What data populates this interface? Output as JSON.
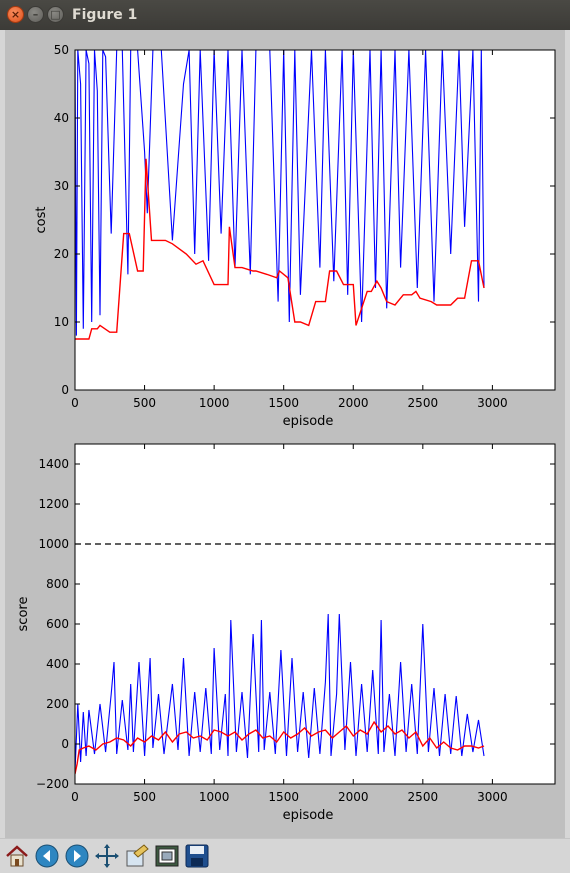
{
  "window": {
    "title": "Figure 1"
  },
  "colors": {
    "raw": "#0000ff",
    "smooth": "#ff0000",
    "target": "#000000"
  },
  "chart_data": [
    {
      "type": "line",
      "xlabel": "episode",
      "ylabel": "cost",
      "xlim": [
        0,
        3450
      ],
      "ylim": [
        0,
        50
      ],
      "xticks": [
        "0",
        "500",
        "1000",
        "1500",
        "2000",
        "2500",
        "3000"
      ],
      "yticks": [
        "0",
        "10",
        "20",
        "30",
        "40",
        "50"
      ],
      "grid": false,
      "series": [
        {
          "role": "raw",
          "color": "#0000ff",
          "x": [
            0,
            10,
            20,
            40,
            60,
            80,
            100,
            120,
            140,
            160,
            180,
            200,
            220,
            260,
            300,
            340,
            380,
            400,
            450,
            500,
            520,
            560,
            620,
            700,
            780,
            820,
            860,
            900,
            960,
            1000,
            1050,
            1100,
            1150,
            1200,
            1260,
            1300,
            1400,
            1460,
            1500,
            1540,
            1580,
            1620,
            1700,
            1760,
            1800,
            1860,
            1920,
            1960,
            2000,
            2060,
            2120,
            2160,
            2200,
            2240,
            2300,
            2340,
            2400,
            2460,
            2520,
            2580,
            2640,
            2700,
            2760,
            2800,
            2860,
            2900,
            2920,
            2940
          ],
          "y": [
            50,
            8,
            50,
            45,
            9,
            50,
            48,
            10,
            50,
            44,
            11,
            50,
            49,
            23,
            50,
            50,
            17,
            50,
            50,
            35,
            26,
            50,
            50,
            22,
            45,
            50,
            20,
            50,
            19,
            50,
            23,
            50,
            18,
            50,
            17,
            50,
            50,
            13,
            50,
            10,
            50,
            14,
            50,
            18,
            50,
            16,
            50,
            14,
            50,
            10,
            50,
            15,
            50,
            12,
            50,
            18,
            50,
            15,
            50,
            13,
            50,
            20,
            50,
            24,
            50,
            13,
            50,
            15
          ]
        },
        {
          "role": "smooth",
          "color": "#ff0000",
          "x": [
            0,
            100,
            120,
            160,
            180,
            250,
            270,
            300,
            350,
            390,
            450,
            490,
            510,
            550,
            650,
            700,
            800,
            870,
            920,
            1000,
            1100,
            1110,
            1150,
            1200,
            1280,
            1300,
            1380,
            1450,
            1470,
            1530,
            1580,
            1620,
            1680,
            1730,
            1800,
            1830,
            1880,
            1930,
            2000,
            2020,
            2100,
            2130,
            2170,
            2200,
            2240,
            2300,
            2360,
            2420,
            2450,
            2480,
            2560,
            2600,
            2700,
            2750,
            2800,
            2850,
            2900,
            2940
          ],
          "y": [
            7.5,
            7.5,
            9,
            9,
            9.5,
            8.5,
            8.5,
            8.5,
            23,
            23,
            17.5,
            17.5,
            34,
            22,
            22,
            21.5,
            20,
            18.5,
            19,
            15.5,
            15.5,
            24,
            18,
            18,
            17.5,
            17.5,
            17,
            16.5,
            17.5,
            16.5,
            10,
            10,
            9.5,
            13,
            13,
            17.5,
            17.5,
            15.5,
            15.5,
            9.5,
            14.5,
            14.5,
            16,
            15,
            13,
            12.5,
            14,
            14,
            14.5,
            13.5,
            13,
            12.5,
            12.5,
            13.5,
            13.5,
            19,
            19,
            15
          ]
        }
      ]
    },
    {
      "type": "line",
      "xlabel": "episode",
      "ylabel": "score",
      "xlim": [
        0,
        3450
      ],
      "ylim": [
        -200,
        1500
      ],
      "xticks": [
        "0",
        "500",
        "1000",
        "1500",
        "2000",
        "2500",
        "3000"
      ],
      "yticks": [
        "−200",
        "0",
        "200",
        "400",
        "600",
        "800",
        "1000",
        "1200",
        "1400"
      ],
      "grid": false,
      "target_line": {
        "y": 1000,
        "style": "dashed",
        "color": "#000000"
      },
      "series": [
        {
          "role": "raw",
          "color": "#0000ff",
          "x": [
            0,
            20,
            40,
            60,
            80,
            100,
            140,
            180,
            220,
            260,
            280,
            300,
            340,
            380,
            400,
            420,
            460,
            500,
            540,
            560,
            600,
            640,
            700,
            740,
            780,
            820,
            860,
            900,
            940,
            980,
            1000,
            1040,
            1080,
            1100,
            1120,
            1160,
            1200,
            1240,
            1280,
            1320,
            1340,
            1360,
            1400,
            1440,
            1480,
            1520,
            1560,
            1600,
            1640,
            1680,
            1720,
            1760,
            1800,
            1820,
            1840,
            1880,
            1900,
            1940,
            1980,
            2020,
            2060,
            2100,
            2140,
            2180,
            2200,
            2220,
            2260,
            2300,
            2340,
            2380,
            2420,
            2460,
            2500,
            2540,
            2580,
            2620,
            2660,
            2700,
            2740,
            2780,
            2820,
            2860,
            2900,
            2940
          ],
          "y": [
            -140,
            200,
            -90,
            160,
            -60,
            170,
            -50,
            200,
            -40,
            250,
            410,
            -50,
            220,
            -30,
            300,
            -40,
            410,
            -60,
            430,
            -20,
            250,
            -50,
            300,
            -30,
            430,
            -60,
            260,
            -40,
            280,
            -50,
            480,
            -30,
            250,
            -60,
            620,
            -40,
            260,
            -70,
            550,
            -40,
            620,
            -30,
            260,
            -50,
            470,
            -60,
            430,
            -40,
            260,
            -70,
            280,
            -50,
            310,
            650,
            -60,
            250,
            650,
            -30,
            410,
            -60,
            300,
            -40,
            370,
            -50,
            620,
            -40,
            250,
            -60,
            410,
            -40,
            300,
            -50,
            600,
            -40,
            280,
            -60,
            250,
            -50,
            240,
            -60,
            150,
            -40,
            120,
            -60
          ]
        },
        {
          "role": "smooth",
          "color": "#ff0000",
          "x": [
            0,
            15,
            30,
            60,
            100,
            150,
            200,
            250,
            300,
            350,
            400,
            450,
            500,
            550,
            600,
            650,
            700,
            750,
            800,
            850,
            900,
            950,
            1000,
            1050,
            1100,
            1150,
            1200,
            1250,
            1300,
            1350,
            1400,
            1450,
            1500,
            1550,
            1600,
            1650,
            1700,
            1750,
            1800,
            1850,
            1900,
            1950,
            2000,
            2050,
            2100,
            2150,
            2200,
            2250,
            2300,
            2350,
            2400,
            2450,
            2500,
            2550,
            2600,
            2650,
            2700,
            2750,
            2800,
            2850,
            2900,
            2940
          ],
          "y": [
            -150,
            -100,
            -30,
            -20,
            -10,
            -30,
            0,
            10,
            30,
            20,
            -10,
            30,
            10,
            40,
            20,
            60,
            10,
            50,
            60,
            30,
            40,
            20,
            70,
            60,
            40,
            60,
            20,
            50,
            70,
            30,
            40,
            10,
            60,
            30,
            50,
            80,
            40,
            60,
            70,
            30,
            60,
            90,
            40,
            70,
            50,
            110,
            60,
            90,
            50,
            70,
            30,
            60,
            -10,
            30,
            -20,
            10,
            -20,
            -30,
            -10,
            -10,
            -20,
            -10
          ]
        }
      ]
    }
  ]
}
